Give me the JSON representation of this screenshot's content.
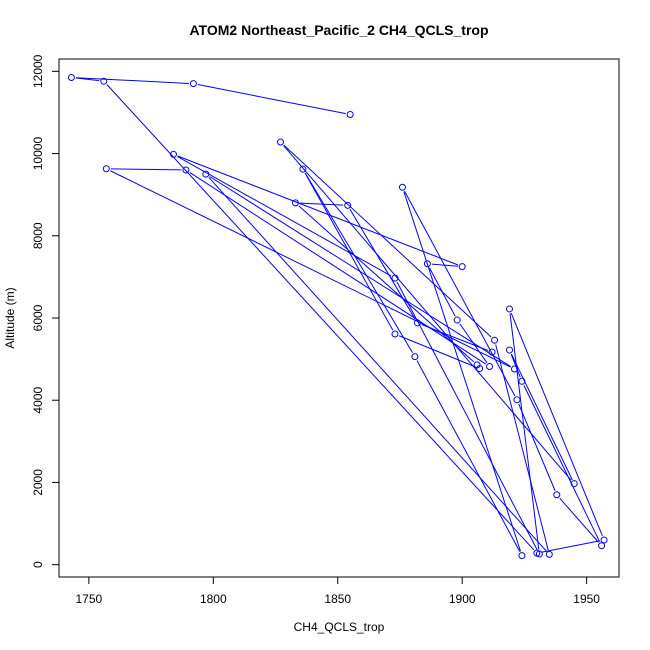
{
  "chart_data": {
    "type": "line",
    "title": "ATOM2 Northeast_Pacific_2 CH4_QCLS_trop",
    "xlabel": "CH4_QCLS_trop",
    "ylabel": "Altitude (m)",
    "xlim": [
      1738,
      1963
    ],
    "ylim": [
      -300,
      12300
    ],
    "xticks": [
      1750,
      1800,
      1850,
      1900,
      1950
    ],
    "yticks": [
      0,
      2000,
      4000,
      6000,
      8000,
      10000,
      12000
    ],
    "grid": false,
    "color": "#0000ff",
    "series": [
      {
        "points": [
          [
            1855,
            10950
          ],
          [
            1792,
            11700
          ],
          [
            1743,
            11850
          ],
          [
            1756,
            11760
          ],
          [
            1930,
            280
          ],
          [
            1957,
            600
          ],
          [
            1919,
            6220
          ],
          [
            1931,
            260
          ],
          [
            1873,
            6970
          ],
          [
            1784,
            9980
          ],
          [
            1900,
            7250
          ],
          [
            1886,
            7320
          ],
          [
            1898,
            5950
          ],
          [
            1911,
            4820
          ],
          [
            1789,
            9600
          ],
          [
            1757,
            9630
          ],
          [
            1921,
            4760
          ],
          [
            1797,
            9500
          ],
          [
            1935,
            250
          ],
          [
            1913,
            5460
          ],
          [
            1827,
            10280
          ],
          [
            1945,
            1970
          ],
          [
            1919,
            5220
          ],
          [
            1924,
            4460
          ],
          [
            1956,
            460
          ],
          [
            1938,
            1700
          ],
          [
            1922,
            4010
          ],
          [
            1876,
            9180
          ],
          [
            1924,
            220
          ],
          [
            1881,
            5060
          ],
          [
            1836,
            9620
          ],
          [
            1873,
            5610
          ],
          [
            1907,
            4770
          ],
          [
            1906,
            4860
          ],
          [
            1833,
            8800
          ],
          [
            1854,
            8740
          ],
          [
            1882,
            5880
          ],
          [
            1912,
            5170
          ]
        ]
      }
    ]
  }
}
